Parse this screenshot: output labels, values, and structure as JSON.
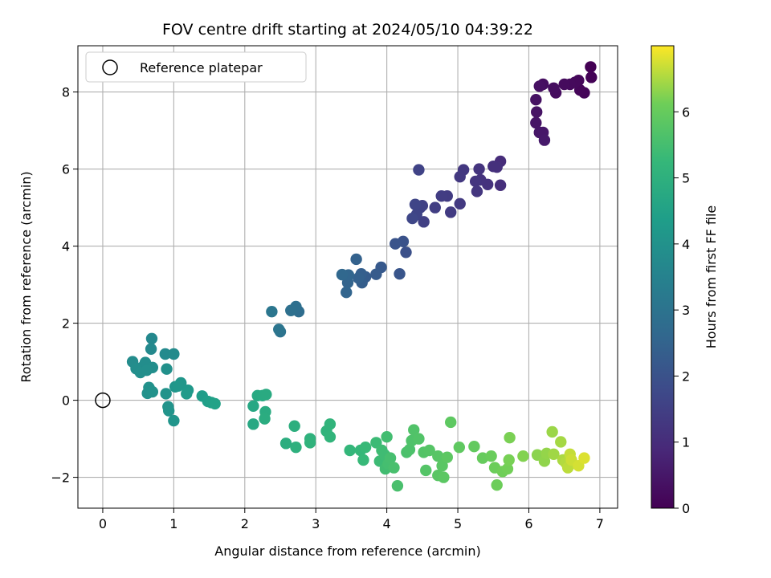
{
  "chart_data": {
    "type": "scatter",
    "title": "FOV centre drift starting at 2024/05/10 04:39:22",
    "xlabel": "Angular distance from reference (arcmin)",
    "ylabel": "Rotation from reference (arcmin)",
    "xlim": [
      -0.35,
      7.25
    ],
    "ylim": [
      -2.8,
      9.2
    ],
    "xticks": [
      0,
      1,
      2,
      3,
      4,
      5,
      6,
      7
    ],
    "yticks": [
      -2,
      0,
      2,
      4,
      6,
      8
    ],
    "xtick_labels": [
      "0",
      "1",
      "2",
      "3",
      "4",
      "5",
      "6",
      "7"
    ],
    "ytick_labels": [
      "−2",
      "0",
      "2",
      "4",
      "6",
      "8"
    ],
    "grid": true,
    "legend": {
      "position": "top-left",
      "entries": [
        "Reference platepar"
      ]
    },
    "reference_point": {
      "x": 0,
      "y": 0,
      "label": "Reference platepar"
    },
    "colorbar": {
      "label": "Hours from first FF file",
      "colormap": "viridis",
      "range": [
        0,
        7.0
      ],
      "ticks": [
        0,
        1,
        2,
        3,
        4,
        5,
        6
      ],
      "tick_labels": [
        "0",
        "1",
        "2",
        "3",
        "4",
        "5",
        "6"
      ]
    },
    "points": [
      {
        "x": 6.87,
        "y": 8.65,
        "c": 0.0
      },
      {
        "x": 6.88,
        "y": 8.38,
        "c": 0.05
      },
      {
        "x": 6.78,
        "y": 7.98,
        "c": 0.1
      },
      {
        "x": 6.72,
        "y": 8.05,
        "c": 0.12
      },
      {
        "x": 6.7,
        "y": 8.3,
        "c": 0.15
      },
      {
        "x": 6.65,
        "y": 8.25,
        "c": 0.18
      },
      {
        "x": 6.58,
        "y": 8.2,
        "c": 0.2
      },
      {
        "x": 6.5,
        "y": 8.2,
        "c": 0.22
      },
      {
        "x": 6.38,
        "y": 7.98,
        "c": 0.25
      },
      {
        "x": 6.35,
        "y": 8.1,
        "c": 0.27
      },
      {
        "x": 6.2,
        "y": 8.2,
        "c": 0.3
      },
      {
        "x": 6.15,
        "y": 8.15,
        "c": 0.33
      },
      {
        "x": 6.1,
        "y": 7.8,
        "c": 0.36
      },
      {
        "x": 6.11,
        "y": 7.48,
        "c": 0.4
      },
      {
        "x": 6.1,
        "y": 7.2,
        "c": 0.43
      },
      {
        "x": 6.15,
        "y": 6.95,
        "c": 0.46
      },
      {
        "x": 6.2,
        "y": 6.95,
        "c": 0.5
      },
      {
        "x": 6.22,
        "y": 6.75,
        "c": 0.53
      },
      {
        "x": 5.6,
        "y": 6.2,
        "c": 1.0
      },
      {
        "x": 5.6,
        "y": 5.58,
        "c": 1.05
      },
      {
        "x": 5.55,
        "y": 6.05,
        "c": 1.08
      },
      {
        "x": 5.5,
        "y": 6.07,
        "c": 1.1
      },
      {
        "x": 5.42,
        "y": 5.6,
        "c": 1.13
      },
      {
        "x": 5.32,
        "y": 5.72,
        "c": 1.16
      },
      {
        "x": 5.3,
        "y": 6.0,
        "c": 1.19
      },
      {
        "x": 5.25,
        "y": 5.68,
        "c": 1.22
      },
      {
        "x": 5.27,
        "y": 5.42,
        "c": 1.25
      },
      {
        "x": 5.08,
        "y": 5.98,
        "c": 1.28
      },
      {
        "x": 5.03,
        "y": 5.8,
        "c": 1.31
      },
      {
        "x": 5.03,
        "y": 5.1,
        "c": 1.34
      },
      {
        "x": 4.9,
        "y": 4.88,
        "c": 1.37
      },
      {
        "x": 4.85,
        "y": 5.3,
        "c": 1.4
      },
      {
        "x": 4.77,
        "y": 5.3,
        "c": 1.43
      },
      {
        "x": 4.68,
        "y": 5.0,
        "c": 1.46
      },
      {
        "x": 4.52,
        "y": 4.63,
        "c": 1.5
      },
      {
        "x": 4.5,
        "y": 5.05,
        "c": 1.53
      },
      {
        "x": 4.47,
        "y": 5.0,
        "c": 1.56
      },
      {
        "x": 4.45,
        "y": 5.98,
        "c": 1.58
      },
      {
        "x": 4.42,
        "y": 4.82,
        "c": 1.62
      },
      {
        "x": 4.4,
        "y": 5.08,
        "c": 1.65
      },
      {
        "x": 4.36,
        "y": 4.72,
        "c": 1.7
      },
      {
        "x": 4.27,
        "y": 3.84,
        "c": 1.95
      },
      {
        "x": 4.23,
        "y": 4.12,
        "c": 2.0
      },
      {
        "x": 4.12,
        "y": 4.06,
        "c": 2.05
      },
      {
        "x": 4.18,
        "y": 3.28,
        "c": 2.1
      },
      {
        "x": 3.92,
        "y": 3.45,
        "c": 2.2
      },
      {
        "x": 3.85,
        "y": 3.27,
        "c": 2.25
      },
      {
        "x": 3.7,
        "y": 3.2,
        "c": 2.3
      },
      {
        "x": 3.65,
        "y": 3.05,
        "c": 2.35
      },
      {
        "x": 3.64,
        "y": 3.28,
        "c": 2.38
      },
      {
        "x": 3.6,
        "y": 3.17,
        "c": 2.42
      },
      {
        "x": 3.57,
        "y": 3.66,
        "c": 2.45
      },
      {
        "x": 3.45,
        "y": 3.05,
        "c": 2.5
      },
      {
        "x": 3.43,
        "y": 2.8,
        "c": 2.55
      },
      {
        "x": 3.46,
        "y": 3.25,
        "c": 2.58
      },
      {
        "x": 3.37,
        "y": 3.26,
        "c": 2.62
      },
      {
        "x": 2.76,
        "y": 2.3,
        "c": 2.8
      },
      {
        "x": 2.72,
        "y": 2.43,
        "c": 2.85
      },
      {
        "x": 2.65,
        "y": 2.33,
        "c": 2.9
      },
      {
        "x": 2.5,
        "y": 1.78,
        "c": 3.0
      },
      {
        "x": 2.48,
        "y": 1.84,
        "c": 3.05
      },
      {
        "x": 2.38,
        "y": 2.3,
        "c": 3.1
      },
      {
        "x": 0.69,
        "y": 1.6,
        "c": 3.7
      },
      {
        "x": 0.68,
        "y": 1.33,
        "c": 3.72
      },
      {
        "x": 0.88,
        "y": 1.2,
        "c": 3.75
      },
      {
        "x": 1.0,
        "y": 1.2,
        "c": 3.78
      },
      {
        "x": 0.42,
        "y": 1.0,
        "c": 3.8
      },
      {
        "x": 0.55,
        "y": 0.85,
        "c": 3.82
      },
      {
        "x": 0.6,
        "y": 0.98,
        "c": 3.84
      },
      {
        "x": 0.7,
        "y": 0.85,
        "c": 3.86
      },
      {
        "x": 0.47,
        "y": 0.82,
        "c": 3.88
      },
      {
        "x": 0.53,
        "y": 0.72,
        "c": 3.9
      },
      {
        "x": 0.62,
        "y": 0.78,
        "c": 3.92
      },
      {
        "x": 0.9,
        "y": 0.81,
        "c": 3.94
      },
      {
        "x": 0.65,
        "y": 0.33,
        "c": 3.96
      },
      {
        "x": 0.63,
        "y": 0.18,
        "c": 3.98
      },
      {
        "x": 0.7,
        "y": 0.22,
        "c": 4.0
      },
      {
        "x": 0.89,
        "y": 0.17,
        "c": 4.02
      },
      {
        "x": 0.92,
        "y": -0.17,
        "c": 4.04
      },
      {
        "x": 0.93,
        "y": -0.27,
        "c": 4.06
      },
      {
        "x": 1.0,
        "y": -0.53,
        "c": 4.08
      },
      {
        "x": 1.02,
        "y": 0.35,
        "c": 4.1
      },
      {
        "x": 1.1,
        "y": 0.45,
        "c": 4.12
      },
      {
        "x": 1.06,
        "y": 0.37,
        "c": 4.15
      },
      {
        "x": 1.2,
        "y": 0.26,
        "c": 4.2
      },
      {
        "x": 1.18,
        "y": 0.17,
        "c": 4.25
      },
      {
        "x": 1.4,
        "y": 0.11,
        "c": 4.35
      },
      {
        "x": 1.48,
        "y": -0.03,
        "c": 4.4
      },
      {
        "x": 1.53,
        "y": -0.06,
        "c": 4.45
      },
      {
        "x": 1.58,
        "y": -0.09,
        "c": 4.5
      },
      {
        "x": 2.12,
        "y": -0.15,
        "c": 4.7
      },
      {
        "x": 2.12,
        "y": -0.62,
        "c": 4.72
      },
      {
        "x": 2.18,
        "y": 0.12,
        "c": 4.75
      },
      {
        "x": 2.25,
        "y": 0.12,
        "c": 4.78
      },
      {
        "x": 2.3,
        "y": 0.15,
        "c": 4.8
      },
      {
        "x": 2.29,
        "y": -0.3,
        "c": 4.82
      },
      {
        "x": 2.28,
        "y": -0.48,
        "c": 4.85
      },
      {
        "x": 2.58,
        "y": -1.12,
        "c": 4.9
      },
      {
        "x": 2.7,
        "y": -0.67,
        "c": 4.95
      },
      {
        "x": 2.72,
        "y": -1.22,
        "c": 5.0
      },
      {
        "x": 2.92,
        "y": -1.0,
        "c": 5.05
      },
      {
        "x": 2.92,
        "y": -1.1,
        "c": 5.08
      },
      {
        "x": 3.15,
        "y": -0.8,
        "c": 5.1
      },
      {
        "x": 3.2,
        "y": -0.62,
        "c": 5.12
      },
      {
        "x": 3.2,
        "y": -0.95,
        "c": 5.15
      },
      {
        "x": 3.48,
        "y": -1.3,
        "c": 5.2
      },
      {
        "x": 3.63,
        "y": -1.3,
        "c": 5.25
      },
      {
        "x": 3.67,
        "y": -1.55,
        "c": 5.28
      },
      {
        "x": 3.7,
        "y": -1.22,
        "c": 5.3
      },
      {
        "x": 3.85,
        "y": -1.1,
        "c": 5.35
      },
      {
        "x": 3.9,
        "y": -1.58,
        "c": 5.38
      },
      {
        "x": 3.93,
        "y": -1.3,
        "c": 5.4
      },
      {
        "x": 3.97,
        "y": -1.42,
        "c": 5.42
      },
      {
        "x": 3.98,
        "y": -1.78,
        "c": 5.45
      },
      {
        "x": 4.0,
        "y": -0.95,
        "c": 5.47
      },
      {
        "x": 4.02,
        "y": -1.65,
        "c": 5.5
      },
      {
        "x": 4.05,
        "y": -1.5,
        "c": 5.52
      },
      {
        "x": 4.1,
        "y": -1.75,
        "c": 5.55
      },
      {
        "x": 4.15,
        "y": -2.22,
        "c": 5.57
      },
      {
        "x": 4.28,
        "y": -1.35,
        "c": 5.6
      },
      {
        "x": 4.32,
        "y": -1.28,
        "c": 5.62
      },
      {
        "x": 4.35,
        "y": -1.05,
        "c": 5.65
      },
      {
        "x": 4.38,
        "y": -0.77,
        "c": 5.68
      },
      {
        "x": 4.45,
        "y": -1.0,
        "c": 5.7
      },
      {
        "x": 4.52,
        "y": -1.35,
        "c": 5.72
      },
      {
        "x": 4.55,
        "y": -1.82,
        "c": 5.74
      },
      {
        "x": 4.6,
        "y": -1.3,
        "c": 5.76
      },
      {
        "x": 4.72,
        "y": -1.45,
        "c": 5.78
      },
      {
        "x": 4.72,
        "y": -1.95,
        "c": 5.8
      },
      {
        "x": 4.78,
        "y": -1.7,
        "c": 5.82
      },
      {
        "x": 4.8,
        "y": -2.0,
        "c": 5.84
      },
      {
        "x": 4.85,
        "y": -1.48,
        "c": 5.86
      },
      {
        "x": 4.9,
        "y": -0.57,
        "c": 5.88
      },
      {
        "x": 5.02,
        "y": -1.22,
        "c": 5.9
      },
      {
        "x": 5.23,
        "y": -1.2,
        "c": 5.95
      },
      {
        "x": 5.35,
        "y": -1.5,
        "c": 6.0
      },
      {
        "x": 5.47,
        "y": -1.45,
        "c": 6.05
      },
      {
        "x": 5.52,
        "y": -1.75,
        "c": 6.08
      },
      {
        "x": 5.55,
        "y": -2.2,
        "c": 6.1
      },
      {
        "x": 5.63,
        "y": -1.85,
        "c": 6.13
      },
      {
        "x": 5.7,
        "y": -1.78,
        "c": 6.15
      },
      {
        "x": 5.72,
        "y": -1.55,
        "c": 6.18
      },
      {
        "x": 5.73,
        "y": -0.97,
        "c": 6.2
      },
      {
        "x": 5.92,
        "y": -1.45,
        "c": 6.25
      },
      {
        "x": 6.12,
        "y": -1.42,
        "c": 6.3
      },
      {
        "x": 6.22,
        "y": -1.58,
        "c": 6.33
      },
      {
        "x": 6.25,
        "y": -1.38,
        "c": 6.36
      },
      {
        "x": 6.33,
        "y": -0.82,
        "c": 6.4
      },
      {
        "x": 6.35,
        "y": -1.4,
        "c": 6.43
      },
      {
        "x": 6.45,
        "y": -1.08,
        "c": 6.46
      },
      {
        "x": 6.48,
        "y": -1.55,
        "c": 6.5
      },
      {
        "x": 6.52,
        "y": -1.62,
        "c": 6.55
      },
      {
        "x": 6.55,
        "y": -1.75,
        "c": 6.6
      },
      {
        "x": 6.58,
        "y": -1.4,
        "c": 6.65
      },
      {
        "x": 6.6,
        "y": -1.55,
        "c": 6.7
      },
      {
        "x": 6.7,
        "y": -1.7,
        "c": 6.75
      },
      {
        "x": 6.78,
        "y": -1.5,
        "c": 6.8
      }
    ]
  }
}
